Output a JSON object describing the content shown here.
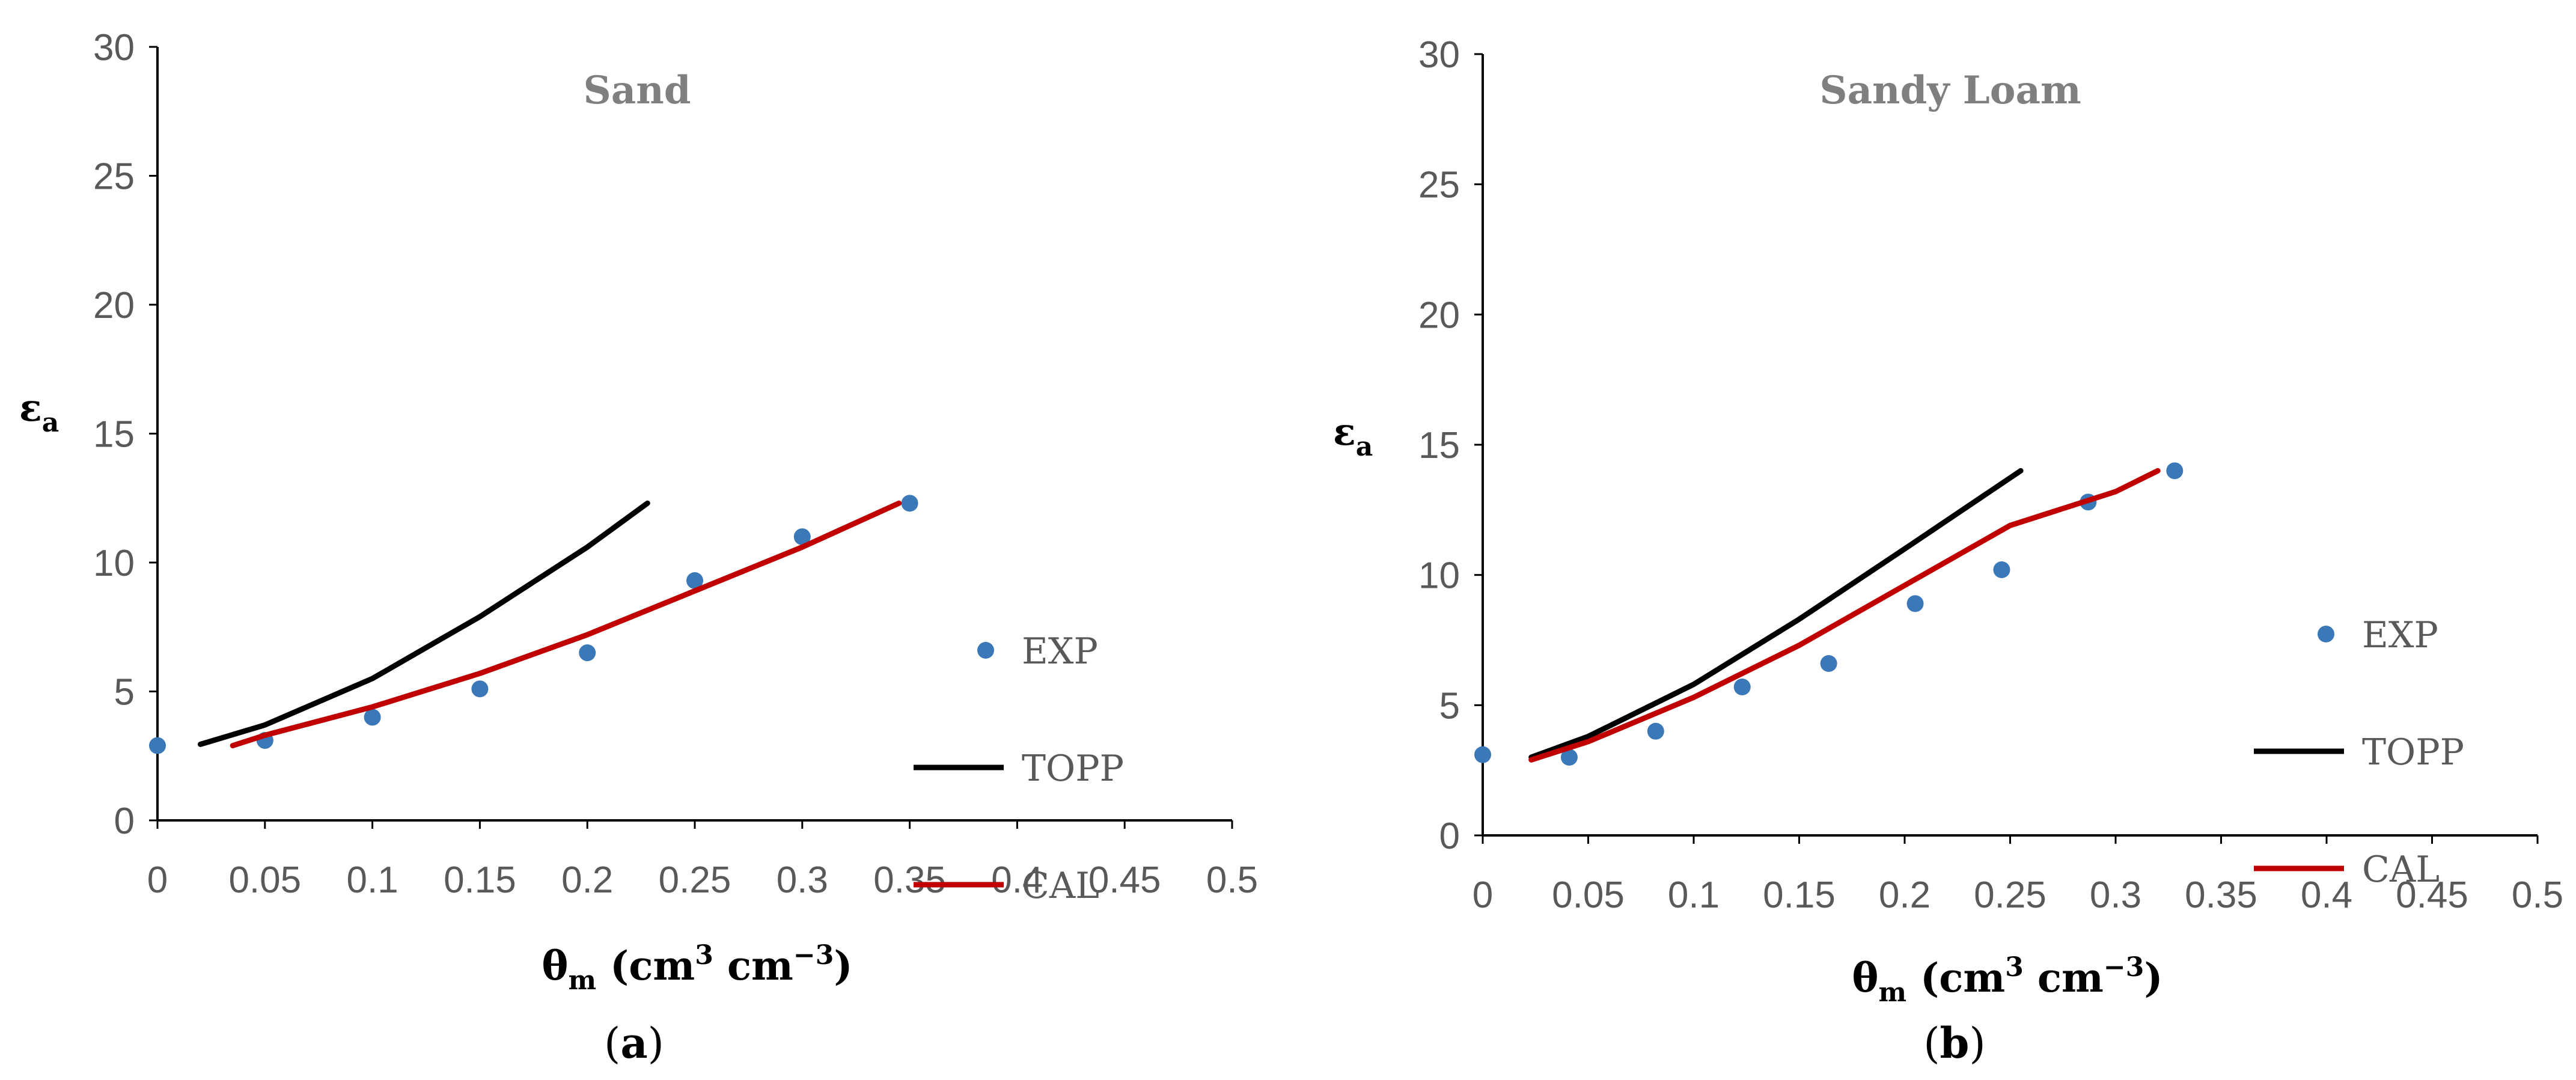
{
  "figure": {
    "panel_labels": [
      "a",
      "b"
    ]
  },
  "chart_data": [
    {
      "type": "scatter",
      "title": "Sand",
      "xlabel": "θm (cm3 cm−3)",
      "xlabel_parts": {
        "symbol": "θ",
        "sub": "m",
        "unit_open": " (cm",
        "sup1": "3",
        "mid": " cm",
        "sup2": "−3",
        "close": ")"
      },
      "ylabel": "εa",
      "ylabel_parts": {
        "symbol": "ε",
        "sub": "a"
      },
      "xlim": [
        0,
        0.5
      ],
      "ylim": [
        0,
        30
      ],
      "xticks": [
        0,
        0.05,
        0.1,
        0.15,
        0.2,
        0.25,
        0.3,
        0.35,
        0.4,
        0.45,
        0.5
      ],
      "xtick_labels": [
        "0",
        "0.05",
        "0.1",
        "0.15",
        "0.2",
        "0.25",
        "0.3",
        "0.35",
        "0.4",
        "0.45",
        "0.5"
      ],
      "yticks": [
        0,
        5,
        10,
        15,
        20,
        25,
        30
      ],
      "ytick_labels": [
        "0",
        "5",
        "10",
        "15",
        "20",
        "25",
        "30"
      ],
      "legend_position": "right",
      "series": [
        {
          "name": "EXP",
          "kind": "scatter",
          "color": "#3a78b8",
          "x": [
            0,
            0.05,
            0.1,
            0.15,
            0.2,
            0.25,
            0.3,
            0.35
          ],
          "y": [
            2.9,
            3.1,
            4.0,
            5.1,
            6.5,
            9.3,
            11.0,
            12.3
          ]
        },
        {
          "name": "TOPP",
          "kind": "line",
          "color": "#000000",
          "x": [
            0.02,
            0.05,
            0.1,
            0.15,
            0.2,
            0.228
          ],
          "y": [
            2.95,
            3.7,
            5.5,
            7.9,
            10.6,
            12.3
          ]
        },
        {
          "name": "CAL",
          "kind": "line",
          "color": "#c00000",
          "x": [
            0.035,
            0.05,
            0.1,
            0.15,
            0.2,
            0.25,
            0.3,
            0.345
          ],
          "y": [
            2.9,
            3.3,
            4.4,
            5.7,
            7.2,
            8.9,
            10.6,
            12.3
          ]
        }
      ]
    },
    {
      "type": "scatter",
      "title": "Sandy Loam",
      "xlabel": "θm (cm3 cm−3)",
      "xlabel_parts": {
        "symbol": "θ",
        "sub": "m",
        "unit_open": " (cm",
        "sup1": "3",
        "mid": " cm",
        "sup2": "−3",
        "close": ")"
      },
      "ylabel": "εa",
      "ylabel_parts": {
        "symbol": "ε",
        "sub": "a"
      },
      "xlim": [
        0,
        0.5
      ],
      "ylim": [
        0,
        30
      ],
      "xticks": [
        0,
        0.05,
        0.1,
        0.15,
        0.2,
        0.25,
        0.3,
        0.35,
        0.4,
        0.45,
        0.5
      ],
      "xtick_labels": [
        "0",
        "0.05",
        "0.1",
        "0.15",
        "0.2",
        "0.25",
        "0.3",
        "0.35",
        "0.4",
        "0.45",
        "0.5"
      ],
      "yticks": [
        0,
        5,
        10,
        15,
        20,
        25,
        30
      ],
      "ytick_labels": [
        "0",
        "5",
        "10",
        "15",
        "20",
        "25",
        "30"
      ],
      "legend_position": "right",
      "series": [
        {
          "name": "EXP",
          "kind": "scatter",
          "color": "#3a78b8",
          "x": [
            0,
            0.041,
            0.082,
            0.123,
            0.164,
            0.205,
            0.246,
            0.287,
            0.328
          ],
          "y": [
            3.1,
            3.0,
            4.0,
            5.7,
            6.6,
            8.9,
            10.2,
            12.8,
            14.0
          ]
        },
        {
          "name": "TOPP",
          "kind": "line",
          "color": "#000000",
          "x": [
            0.023,
            0.05,
            0.1,
            0.15,
            0.2,
            0.255
          ],
          "y": [
            3.0,
            3.8,
            5.8,
            8.3,
            11.0,
            14.0
          ]
        },
        {
          "name": "CAL",
          "kind": "line",
          "color": "#c00000",
          "x": [
            0.023,
            0.05,
            0.1,
            0.15,
            0.2,
            0.25,
            0.3,
            0.32
          ],
          "y": [
            2.9,
            3.6,
            5.3,
            7.3,
            9.6,
            11.9,
            13.2,
            14.0
          ]
        }
      ]
    }
  ]
}
